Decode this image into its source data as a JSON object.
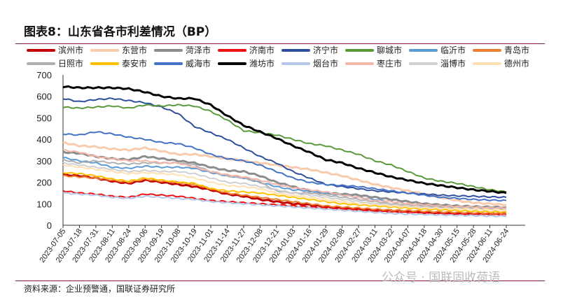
{
  "title": "图表8：山东省各市利差情况（BP）",
  "source": "资料来源：企业预警通，国联证券研究所",
  "watermark": "公众号 · 国联固收荷语",
  "chart_data": {
    "type": "line",
    "title": "山东省各市利差情况（BP）",
    "xlabel": "",
    "ylabel": "",
    "ylim": [
      0,
      700
    ],
    "yticks": [
      0,
      100,
      200,
      300,
      400,
      500,
      600,
      700
    ],
    "x_ticks": [
      "2023-07-05",
      "2023-07-18",
      "2023-07-31",
      "2023-08-11",
      "2023-08-24",
      "2023-09-06",
      "2023-09-19",
      "2023-10-08",
      "2023-10-19",
      "2023-11-01",
      "2023-11-14",
      "2023-11-27",
      "2023-12-08",
      "2023-12-21",
      "2024-01-03",
      "2024-01-16",
      "2024-01-29",
      "2024-02-08",
      "2024-02-27",
      "2024-03-11",
      "2024-03-22",
      "2024-04-07",
      "2024-04-18",
      "2024-04-30",
      "2024-05-15",
      "2024-05-28",
      "2024-06-11",
      "2024-06-24"
    ],
    "legend_position": "top",
    "series": [
      {
        "name": "滨州市",
        "color": "#c00000",
        "width": 3,
        "values": [
          235,
          230,
          220,
          205,
          195,
          210,
          200,
          190,
          180,
          165,
          145,
          135,
          120,
          110,
          100,
          95,
          85,
          80,
          75,
          70,
          68,
          65,
          60,
          58,
          55,
          55,
          55,
          55
        ]
      },
      {
        "name": "东营市",
        "color": "#f8cbad",
        "width": 3,
        "values": [
          385,
          370,
          365,
          355,
          350,
          360,
          345,
          330,
          330,
          320,
          310,
          300,
          290,
          280,
          270,
          260,
          245,
          230,
          210,
          190,
          175,
          160,
          145,
          130,
          115,
          105,
          100,
          95
        ]
      },
      {
        "name": "菏泽市",
        "color": "#8c8c8c",
        "width": 3,
        "values": [
          340,
          335,
          320,
          310,
          305,
          320,
          310,
          300,
          290,
          270,
          255,
          250,
          230,
          200,
          180,
          160,
          150,
          145,
          140,
          130,
          120,
          110,
          100,
          95,
          90,
          87,
          85,
          83
        ]
      },
      {
        "name": "济南市",
        "color": "#ee1111",
        "width": 2,
        "values": [
          160,
          150,
          145,
          135,
          130,
          145,
          140,
          135,
          125,
          115,
          110,
          105,
          100,
          95,
          90,
          85,
          80,
          75,
          70,
          65,
          62,
          60,
          58,
          55,
          52,
          51,
          50,
          50
        ]
      },
      {
        "name": "济宁市",
        "color": "#2f4f9f",
        "width": 2,
        "values": [
          590,
          575,
          585,
          590,
          580,
          570,
          550,
          520,
          460,
          430,
          400,
          360,
          320,
          290,
          250,
          220,
          190,
          180,
          170,
          160,
          155,
          150,
          145,
          140,
          137,
          135,
          132,
          130
        ]
      },
      {
        "name": "聊城市",
        "color": "#5b9a3c",
        "width": 2,
        "values": [
          550,
          545,
          550,
          555,
          545,
          560,
          555,
          560,
          555,
          530,
          490,
          440,
          430,
          420,
          400,
          380,
          370,
          350,
          330,
          300,
          280,
          250,
          220,
          205,
          195,
          180,
          165,
          155
        ]
      },
      {
        "name": "临沂市",
        "color": "#5b9bd5",
        "width": 2,
        "values": [
          315,
          300,
          290,
          270,
          265,
          275,
          270,
          270,
          265,
          245,
          230,
          220,
          200,
          180,
          165,
          160,
          150,
          140,
          130,
          120,
          110,
          100,
          90,
          85,
          80,
          78,
          76,
          75
        ]
      },
      {
        "name": "青岛市",
        "color": "#ed7d31",
        "width": 2,
        "values": [
          230,
          225,
          220,
          210,
          200,
          215,
          205,
          200,
          190,
          170,
          150,
          140,
          130,
          120,
          110,
          100,
          90,
          85,
          80,
          75,
          70,
          68,
          65,
          62,
          60,
          58,
          56,
          55
        ]
      },
      {
        "name": "日照市",
        "color": "#b0b0b0",
        "width": 2,
        "values": [
          305,
          290,
          300,
          290,
          285,
          290,
          290,
          290,
          280,
          250,
          230,
          220,
          200,
          160,
          150,
          150,
          140,
          130,
          120,
          110,
          100,
          95,
          90,
          85,
          82,
          80,
          78,
          75
        ]
      },
      {
        "name": "泰安市",
        "color": "#ffc000",
        "width": 2,
        "values": [
          245,
          240,
          230,
          215,
          205,
          220,
          210,
          200,
          195,
          170,
          160,
          155,
          150,
          140,
          130,
          120,
          110,
          100,
          95,
          90,
          85,
          80,
          75,
          72,
          68,
          65,
          63,
          62
        ]
      },
      {
        "name": "威海市",
        "color": "#4472c4",
        "width": 2,
        "values": [
          425,
          420,
          435,
          425,
          410,
          400,
          385,
          380,
          360,
          330,
          310,
          300,
          280,
          250,
          220,
          200,
          190,
          185,
          180,
          170,
          160,
          150,
          140,
          130,
          125,
          120,
          117,
          115
        ]
      },
      {
        "name": "潍坊市",
        "color": "#000000",
        "width": 3,
        "values": [
          645,
          640,
          640,
          640,
          635,
          620,
          600,
          590,
          590,
          560,
          510,
          465,
          435,
          405,
          370,
          340,
          305,
          290,
          265,
          245,
          225,
          210,
          195,
          185,
          175,
          165,
          158,
          150
        ]
      },
      {
        "name": "烟台市",
        "color": "#b4c7e7",
        "width": 2,
        "values": [
          150,
          145,
          140,
          130,
          125,
          135,
          130,
          125,
          120,
          110,
          105,
          100,
          95,
          90,
          85,
          80,
          75,
          70,
          65,
          60,
          55,
          52,
          50,
          48,
          46,
          45,
          43,
          42
        ]
      },
      {
        "name": "枣庄市",
        "color": "#f4b6a8",
        "width": 2,
        "values": [
          350,
          340,
          320,
          310,
          300,
          300,
          290,
          290,
          270,
          250,
          235,
          225,
          210,
          190,
          175,
          165,
          155,
          140,
          130,
          115,
          110,
          100,
          95,
          90,
          87,
          85,
          82,
          80
        ]
      },
      {
        "name": "淄博市",
        "color": "#d0d0d0",
        "width": 2,
        "values": [
          290,
          280,
          270,
          260,
          250,
          255,
          250,
          250,
          240,
          220,
          200,
          195,
          180,
          165,
          150,
          140,
          130,
          120,
          110,
          100,
          95,
          90,
          85,
          80,
          77,
          75,
          72,
          70
        ]
      },
      {
        "name": "德州市",
        "color": "#ffe0b0",
        "width": 2,
        "values": [
          280,
          270,
          260,
          250,
          240,
          245,
          240,
          235,
          220,
          200,
          185,
          180,
          170,
          150,
          140,
          130,
          120,
          110,
          100,
          95,
          90,
          85,
          80,
          78,
          76,
          75,
          73,
          72
        ]
      }
    ]
  }
}
